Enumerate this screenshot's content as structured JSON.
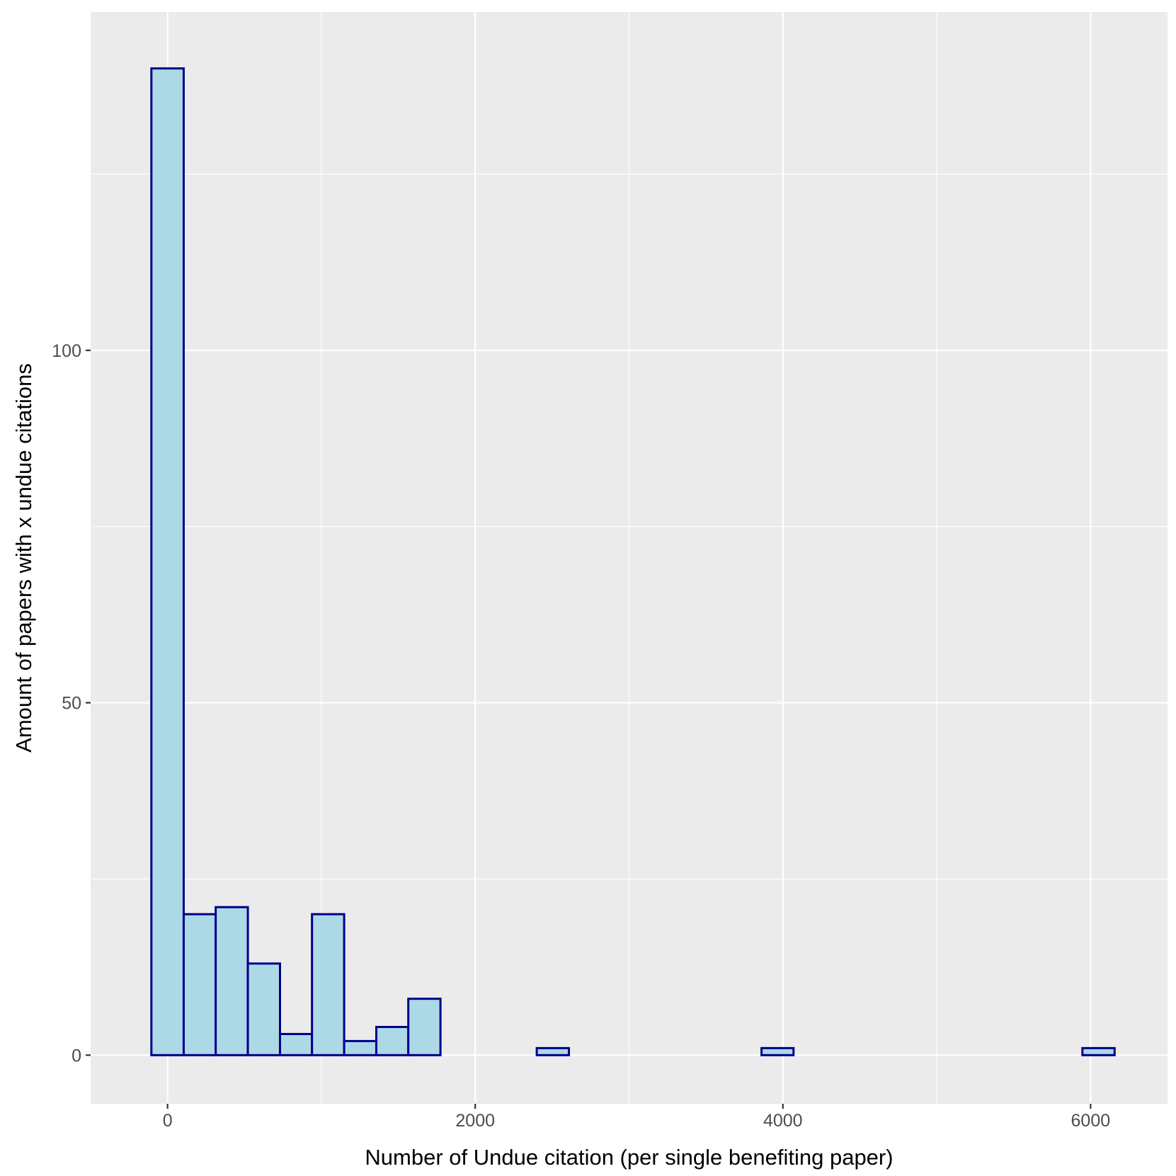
{
  "chart_data": {
    "type": "bar",
    "subtype": "histogram",
    "title": "",
    "xlabel": "Number of Undue citation (per single benefiting paper)",
    "ylabel": "Amount of papers with x undue citations",
    "xlim": [
      -500,
      6500
    ],
    "ylim": [
      -6.9,
      148
    ],
    "x_ticks": [
      0,
      2000,
      4000,
      6000
    ],
    "x_tick_labels": [
      "0",
      "2000",
      "4000",
      "6000"
    ],
    "x_minor_ticks": [
      1000,
      3000,
      5000
    ],
    "y_ticks": [
      0,
      50,
      100
    ],
    "y_tick_labels": [
      "0",
      "50",
      "100"
    ],
    "y_minor_ticks": [
      25,
      75,
      125
    ],
    "grid": true,
    "legend": "none",
    "bins": [
      {
        "x0": -105,
        "x1": 105,
        "count": 140
      },
      {
        "x0": 105,
        "x1": 313,
        "count": 20
      },
      {
        "x0": 313,
        "x1": 522,
        "count": 21
      },
      {
        "x0": 522,
        "x1": 731,
        "count": 13
      },
      {
        "x0": 731,
        "x1": 939,
        "count": 3
      },
      {
        "x0": 939,
        "x1": 1148,
        "count": 20
      },
      {
        "x0": 1148,
        "x1": 1357,
        "count": 2
      },
      {
        "x0": 1357,
        "x1": 1565,
        "count": 4
      },
      {
        "x0": 1565,
        "x1": 1774,
        "count": 8
      },
      {
        "x0": 1774,
        "x1": 1983,
        "count": 0
      },
      {
        "x0": 1983,
        "x1": 2191,
        "count": 0
      },
      {
        "x0": 2191,
        "x1": 2400,
        "count": 0
      },
      {
        "x0": 2400,
        "x1": 2609,
        "count": 1
      },
      {
        "x0": 2609,
        "x1": 2817,
        "count": 0
      },
      {
        "x0": 2817,
        "x1": 3026,
        "count": 0
      },
      {
        "x0": 3026,
        "x1": 3235,
        "count": 0
      },
      {
        "x0": 3235,
        "x1": 3443,
        "count": 0
      },
      {
        "x0": 3443,
        "x1": 3652,
        "count": 0
      },
      {
        "x0": 3652,
        "x1": 3861,
        "count": 0
      },
      {
        "x0": 3861,
        "x1": 4069,
        "count": 1
      },
      {
        "x0": 4069,
        "x1": 4278,
        "count": 0
      },
      {
        "x0": 4278,
        "x1": 4487,
        "count": 0
      },
      {
        "x0": 4487,
        "x1": 4695,
        "count": 0
      },
      {
        "x0": 4695,
        "x1": 4904,
        "count": 0
      },
      {
        "x0": 4904,
        "x1": 5113,
        "count": 0
      },
      {
        "x0": 5113,
        "x1": 5321,
        "count": 0
      },
      {
        "x0": 5321,
        "x1": 5530,
        "count": 0
      },
      {
        "x0": 5530,
        "x1": 5739,
        "count": 0
      },
      {
        "x0": 5739,
        "x1": 5947,
        "count": 0
      },
      {
        "x0": 5947,
        "x1": 6156,
        "count": 1
      }
    ],
    "colors": {
      "panel_background": "#ebebeb",
      "grid_major": "#ffffff",
      "grid_minor": "#ffffff",
      "bar_fill": "#add8e6",
      "bar_outline": "#00008b",
      "tick_label": "#4d4d4d",
      "axis_title": "#000000",
      "tick_mark": "#333333"
    }
  }
}
